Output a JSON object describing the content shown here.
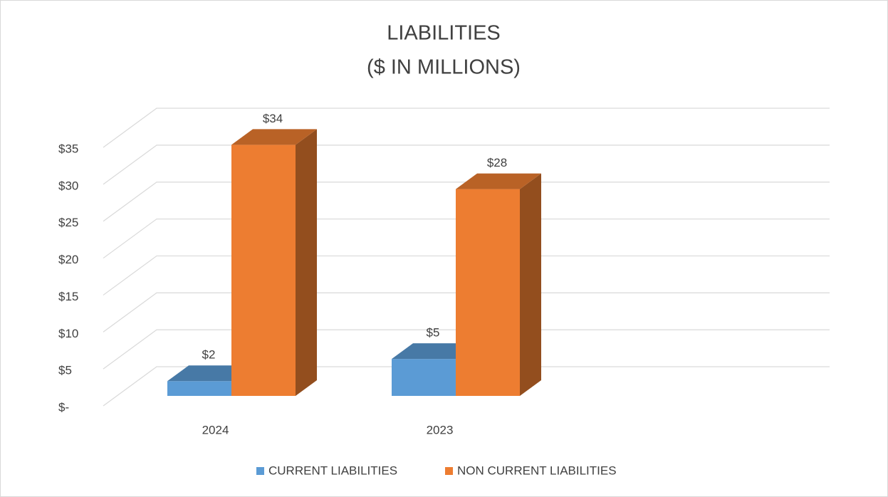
{
  "chart_data": {
    "type": "bar3d",
    "title": "LIABILITIES",
    "subtitle": "($ IN MILLIONS)",
    "categories": [
      "2024",
      "2023"
    ],
    "series": [
      {
        "name": "CURRENT LIABILITIES",
        "color": "#5b9bd5",
        "values": [
          2,
          5
        ],
        "value_labels": [
          "$2",
          "$5"
        ]
      },
      {
        "name": "NON CURRENT LIABILITIES",
        "color": "#ed7d31",
        "values": [
          34,
          28
        ],
        "value_labels": [
          "$34",
          "$28"
        ]
      }
    ],
    "ylim": [
      0,
      35
    ],
    "yticks": [
      {
        "value": 0,
        "label": "$-"
      },
      {
        "value": 5,
        "label": "$5"
      },
      {
        "value": 10,
        "label": "$10"
      },
      {
        "value": 15,
        "label": "$15"
      },
      {
        "value": 20,
        "label": "$20"
      },
      {
        "value": 25,
        "label": "$25"
      },
      {
        "value": 30,
        "label": "$30"
      },
      {
        "value": 35,
        "label": "$35"
      }
    ],
    "grid": true,
    "legend": "bottom"
  }
}
